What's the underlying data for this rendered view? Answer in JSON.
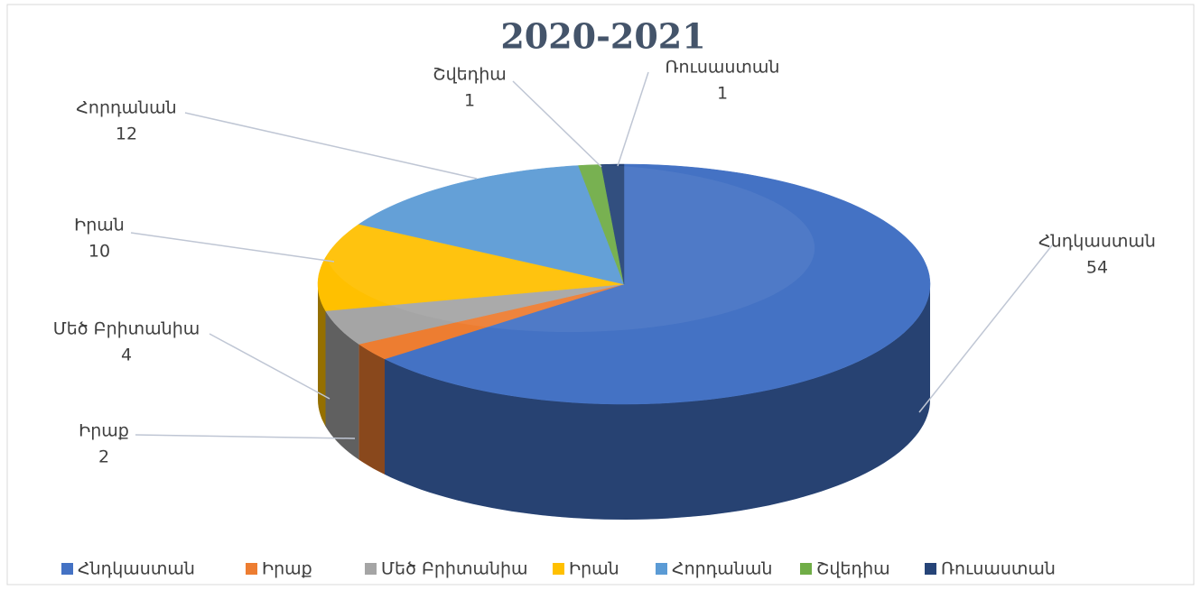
{
  "chart_data": {
    "type": "pie",
    "title": "2020-2021",
    "categories": [
      "Հնդկաստան",
      "Իրաք",
      "Մեծ Բրիտանիա",
      "Իրան",
      "Հորդանան",
      "Շվեդիա",
      "Ռուսաստան"
    ],
    "values": [
      54,
      2,
      4,
      10,
      12,
      1,
      1
    ],
    "colors": [
      "#4472c4",
      "#ed7d31",
      "#a5a5a5",
      "#ffc000",
      "#5b9bd5",
      "#70ad47",
      "#264478"
    ],
    "legend": "bottom"
  }
}
